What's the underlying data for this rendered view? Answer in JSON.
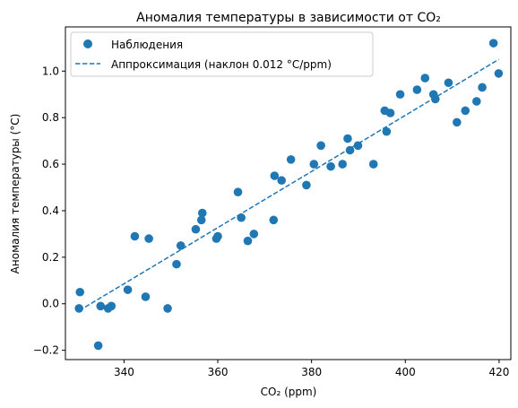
{
  "chart_data": {
    "type": "scatter",
    "title": "Аномалия температуры в зависимости от CO₂",
    "xlabel": "CO₂ (ppm)",
    "ylabel": "Аномалия температуры (°C)",
    "xlim": [
      327.5,
      422.5
    ],
    "ylim": [
      -0.24,
      1.19
    ],
    "xticks": [
      340,
      360,
      380,
      400,
      420
    ],
    "yticks": [
      -0.2,
      0.0,
      0.2,
      0.4,
      0.6,
      0.8,
      1.0
    ],
    "ytick_labels": [
      "−0.2",
      "0.0",
      "0.2",
      "0.4",
      "0.6",
      "0.8",
      "1.0"
    ],
    "grid": false,
    "legend_position": "upper-left",
    "colors": {
      "series": "#1f77b4",
      "axes": "#000000"
    },
    "series": [
      {
        "name": "Наблюдения",
        "kind": "scatter",
        "x": [
          330.4,
          330.6,
          334.5,
          335.0,
          336.6,
          337.3,
          340.8,
          342.3,
          344.6,
          345.3,
          349.3,
          351.2,
          352.1,
          355.3,
          356.5,
          356.7,
          359.7,
          360.0,
          364.3,
          365.0,
          366.4,
          367.7,
          371.9,
          372.1,
          373.6,
          375.6,
          378.9,
          380.5,
          382.0,
          384.1,
          386.6,
          387.7,
          388.2,
          389.9,
          393.2,
          395.6,
          396.0,
          396.8,
          398.9,
          402.5,
          404.2,
          406.0,
          406.4,
          409.2,
          411.0,
          412.8,
          415.2,
          416.4,
          418.8,
          419.9
        ],
        "y": [
          -0.02,
          0.05,
          -0.18,
          -0.01,
          -0.02,
          -0.01,
          0.06,
          0.29,
          0.03,
          0.28,
          -0.02,
          0.17,
          0.25,
          0.32,
          0.36,
          0.39,
          0.28,
          0.29,
          0.48,
          0.37,
          0.27,
          0.3,
          0.36,
          0.55,
          0.53,
          0.62,
          0.51,
          0.6,
          0.68,
          0.59,
          0.6,
          0.71,
          0.66,
          0.68,
          0.6,
          0.83,
          0.74,
          0.82,
          0.9,
          0.92,
          0.97,
          0.9,
          0.88,
          0.95,
          0.78,
          0.83,
          0.87,
          0.93,
          1.12,
          0.99
        ]
      },
      {
        "name": "Аппроксимация (наклон 0.012 °C/ppm)",
        "kind": "line",
        "style": "dashed",
        "x": [
          330.4,
          419.9
        ],
        "y": [
          -0.03,
          1.05
        ]
      }
    ]
  }
}
